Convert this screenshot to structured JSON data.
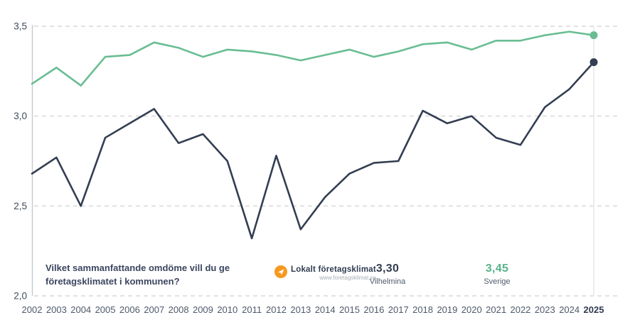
{
  "question": {
    "line1": "Vilket sammanfattande omdöme vill du ge",
    "line2": "företagsklimatet i kommunen?"
  },
  "logo": {
    "title": "Lokalt företagsklimat",
    "url": "www.foretagsklimat.se"
  },
  "legend": {
    "items": [
      {
        "value": "3,30",
        "label": "Vilhelmina",
        "color": "#333e52"
      },
      {
        "value": "3,45",
        "label": "Sverige",
        "color": "#57b38c"
      }
    ]
  },
  "colors": {
    "grid": "#d8d8d8",
    "axis": "#c6ccd2",
    "highlight_line": "#e4e7ea",
    "x_label": "#4e5a6a",
    "x_label_bold": "#2f3b4f",
    "y_label": "#3e4b5c",
    "logo_orange": "#f6991e"
  },
  "chart_data": {
    "type": "line",
    "title": "",
    "xlabel": "",
    "ylabel": "",
    "x": [
      "2002",
      "2003",
      "2004",
      "2005",
      "2006",
      "2007",
      "2008",
      "2009",
      "2010",
      "2011",
      "2012",
      "2013",
      "2014",
      "2015",
      "2016",
      "2017",
      "2018",
      "2019",
      "2020",
      "2021",
      "2022",
      "2023",
      "2024",
      "2025"
    ],
    "last_x_bold": true,
    "ylim": [
      2.0,
      3.5
    ],
    "yticks": [
      {
        "label": "3,5",
        "value": 3.5
      },
      {
        "label": "3,0",
        "value": 3.0
      },
      {
        "label": "2,5",
        "value": 2.5
      },
      {
        "label": "2,0",
        "value": 2.0
      }
    ],
    "grid": "dashed-horizontal",
    "legend_position": "bottom-inside",
    "series": [
      {
        "name": "Vilhelmina",
        "color": "#333e52",
        "end_dot": true,
        "final_label": "3,30",
        "values": [
          2.68,
          2.77,
          2.5,
          2.88,
          2.96,
          3.04,
          2.85,
          2.9,
          2.75,
          2.32,
          2.78,
          2.37,
          2.55,
          2.68,
          2.74,
          2.75,
          3.03,
          2.96,
          3.0,
          2.88,
          2.84,
          3.05,
          3.15,
          3.3
        ]
      },
      {
        "name": "Sverige",
        "color": "#69bd93",
        "end_dot": true,
        "final_label": "3,45",
        "values": [
          3.18,
          3.27,
          3.17,
          3.33,
          3.34,
          3.41,
          3.38,
          3.33,
          3.37,
          3.36,
          3.34,
          3.31,
          3.34,
          3.37,
          3.33,
          3.36,
          3.4,
          3.41,
          3.37,
          3.42,
          3.42,
          3.45,
          3.47,
          3.45
        ]
      }
    ]
  }
}
